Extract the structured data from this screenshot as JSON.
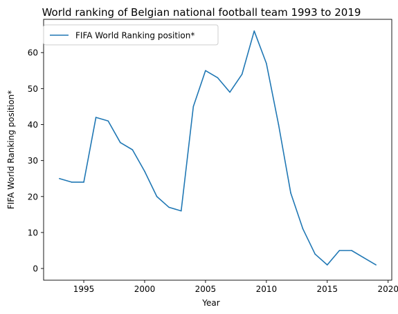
{
  "chart_data": {
    "type": "line",
    "title": "World ranking of Belgian national football team 1993 to 2019",
    "xlabel": "Year",
    "ylabel": "FIFA World Ranking position*",
    "xlim": [
      1991.7,
      2020.3
    ],
    "ylim": [
      -3.25,
      69.25
    ],
    "xticks": [
      1995,
      2000,
      2005,
      2010,
      2015,
      2020
    ],
    "yticks": [
      0,
      10,
      20,
      30,
      40,
      50,
      60
    ],
    "grid": false,
    "legend_position": "upper left",
    "colors": {
      "series": "#1f77b4"
    },
    "series": [
      {
        "name": "FIFA World Ranking position*",
        "x": [
          1993,
          1994,
          1995,
          1996,
          1997,
          1998,
          1999,
          2000,
          2001,
          2002,
          2003,
          2004,
          2005,
          2006,
          2007,
          2008,
          2009,
          2010,
          2011,
          2012,
          2013,
          2014,
          2015,
          2016,
          2017,
          2018,
          2019
        ],
        "y": [
          25,
          24,
          24,
          42,
          41,
          35,
          33,
          27,
          20,
          17,
          16,
          45,
          55,
          53,
          49,
          54,
          66,
          57,
          40,
          21,
          11,
          4,
          1,
          5,
          5,
          3,
          1
        ]
      }
    ]
  }
}
